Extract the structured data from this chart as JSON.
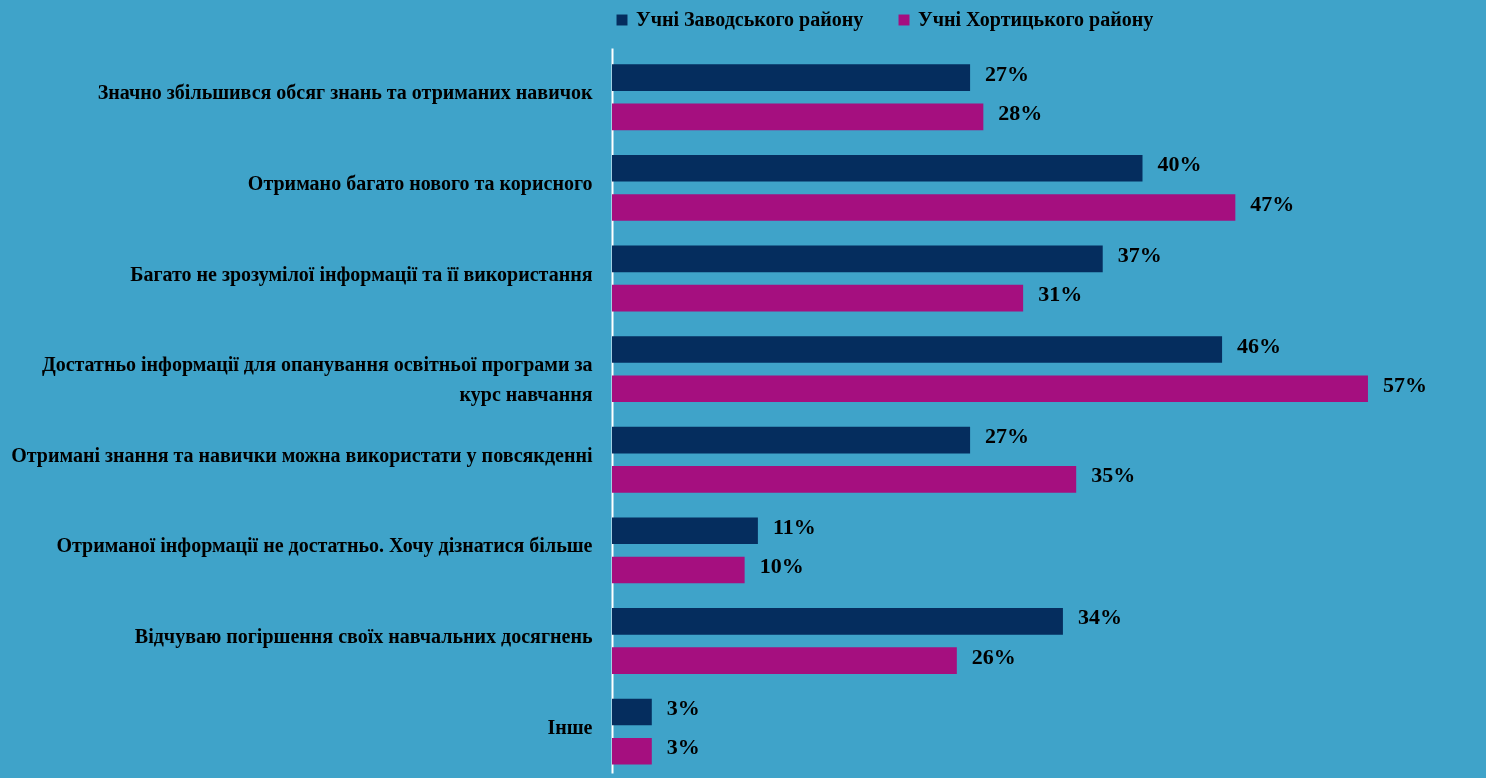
{
  "chart_data": {
    "type": "bar",
    "orientation": "horizontal",
    "legend": "top",
    "categories": [
      "Значно збільшився обсяг знань та отриманих навичок",
      "Отримано багато нового та корисного",
      "Багато не зрозумілої інформації та її використання",
      "Достатньо інформації для опанування освітньої програми за\nкурс навчання",
      "Отримані знання та навички можна використати у повсякденні",
      "Отриманої інформації не достатньо. Хочу дізнатися більше",
      "Відчуваю погіршення своїх навчальних досягнень",
      "Інше"
    ],
    "series": [
      {
        "name": "Учні Заводського району",
        "color": "#052d5e",
        "values": [
          27,
          40,
          37,
          46,
          27,
          11,
          34,
          3
        ],
        "value_labels": [
          "27%",
          "40%",
          "37%",
          "46%",
          "27%",
          "11%",
          "34%",
          "3%"
        ]
      },
      {
        "name": "Учні Хортицького району",
        "color": "#a50f7f",
        "values": [
          28,
          47,
          31,
          57,
          35,
          10,
          26,
          3
        ],
        "value_labels": [
          "28%",
          "47%",
          "31%",
          "57%",
          "35%",
          "10%",
          "26%",
          "3%"
        ]
      }
    ]
  }
}
